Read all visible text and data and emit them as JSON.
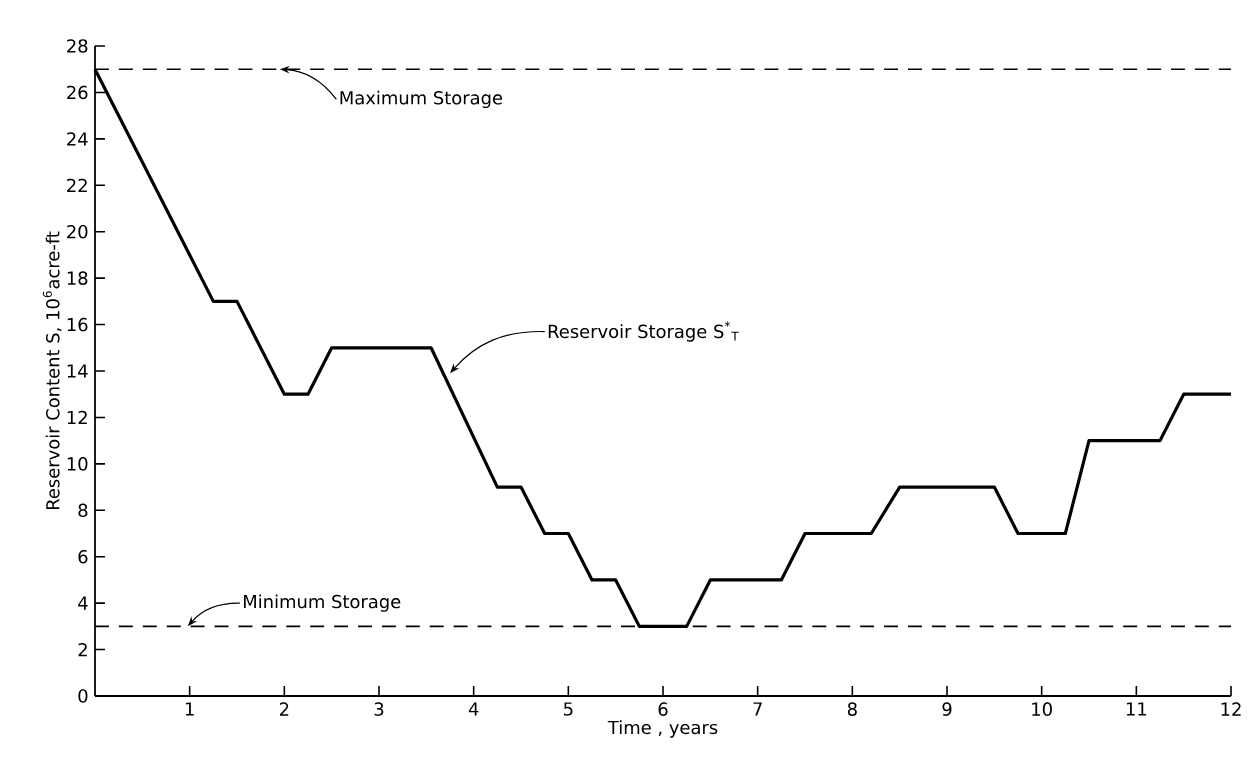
{
  "chart_data": {
    "type": "line",
    "xlabel": "Time , years",
    "ylabel": "Reservoir Content S, 10$^{6}$acre-ft",
    "x": [
      0,
      1.25,
      1.5,
      2.0,
      2.25,
      2.5,
      3.55,
      4.25,
      4.5,
      4.75,
      5.0,
      5.25,
      5.5,
      5.75,
      6.25,
      6.5,
      7.25,
      7.5,
      8.2,
      8.5,
      9.5,
      9.75,
      10.25,
      10.5,
      11.25,
      11.5,
      12
    ],
    "series": [
      {
        "color": "#000000",
        "values": [
          27,
          17,
          17,
          13,
          13,
          15,
          15,
          9,
          9,
          7,
          7,
          5,
          5,
          3,
          3,
          5,
          5,
          7,
          7,
          9,
          9,
          7,
          7,
          11,
          11,
          13,
          13
        ]
      }
    ],
    "xlim": [
      0,
      12
    ],
    "xticks": [
      1,
      2,
      3,
      4,
      5,
      6,
      7,
      8,
      9,
      10,
      11,
      12
    ],
    "ylim": [
      0,
      28
    ],
    "yticks": [
      0,
      2,
      4,
      6,
      8,
      10,
      12,
      14,
      16,
      18,
      20,
      22,
      24,
      26,
      28
    ],
    "ref_lines": [
      {
        "axis": "y",
        "value": 27,
        "color": "#000000",
        "line_style": "dashed"
      },
      {
        "axis": "y",
        "value": 3,
        "color": "#000000",
        "line_style": "dashed"
      }
    ],
    "annotations": [
      {
        "text": "Maximum Storage",
        "x": 1.95,
        "y": 27
      },
      {
        "text": "Minimum Storage",
        "x": 0.98,
        "y": 3
      },
      {
        "text": "Reservoir Storage S$^{*}$$_{T}$",
        "x": 3.75,
        "y": 13.9
      }
    ],
    "marker": "none",
    "line_style": "solid"
  }
}
